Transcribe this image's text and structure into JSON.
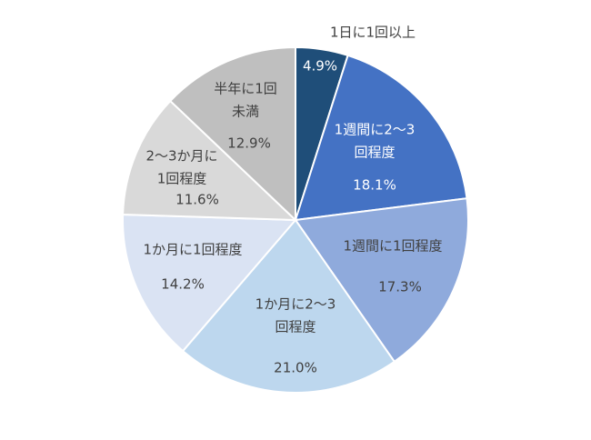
{
  "chart_data": {
    "type": "pie",
    "title": "",
    "start_angle_deg": 0,
    "direction": "clockwise",
    "slices": [
      {
        "label_lines": [
          "1日に1回以上"
        ],
        "value_text": "4.9%",
        "value": 4.9,
        "color": "#1f4e79",
        "text_color": "#ffffff",
        "label_color": "#404040"
      },
      {
        "label_lines": [
          "1週間に2～3",
          "回程度"
        ],
        "value_text": "18.1%",
        "value": 18.1,
        "color": "#4472c4",
        "text_color": "#ffffff"
      },
      {
        "label_lines": [
          "1週間に1回程度"
        ],
        "value_text": "17.3%",
        "value": 17.3,
        "color": "#8faadc",
        "text_color": "#404040"
      },
      {
        "label_lines": [
          "1か月に2～3",
          "回程度"
        ],
        "value_text": "21.0%",
        "value": 21.0,
        "color": "#bdd7ee",
        "text_color": "#404040"
      },
      {
        "label_lines": [
          "1か月に1回程度"
        ],
        "value_text": "14.2%",
        "value": 14.2,
        "color": "#dae3f3",
        "text_color": "#404040"
      },
      {
        "label_lines": [
          "2～3か月に",
          "1回程度"
        ],
        "value_text": "11.6%",
        "value": 11.6,
        "color": "#d9d9d9",
        "text_color": "#404040"
      },
      {
        "label_lines": [
          "半年に1回",
          "未満"
        ],
        "value_text": "12.9%",
        "value": 12.9,
        "color": "#bfbfbf",
        "text_color": "#404040"
      }
    ]
  }
}
